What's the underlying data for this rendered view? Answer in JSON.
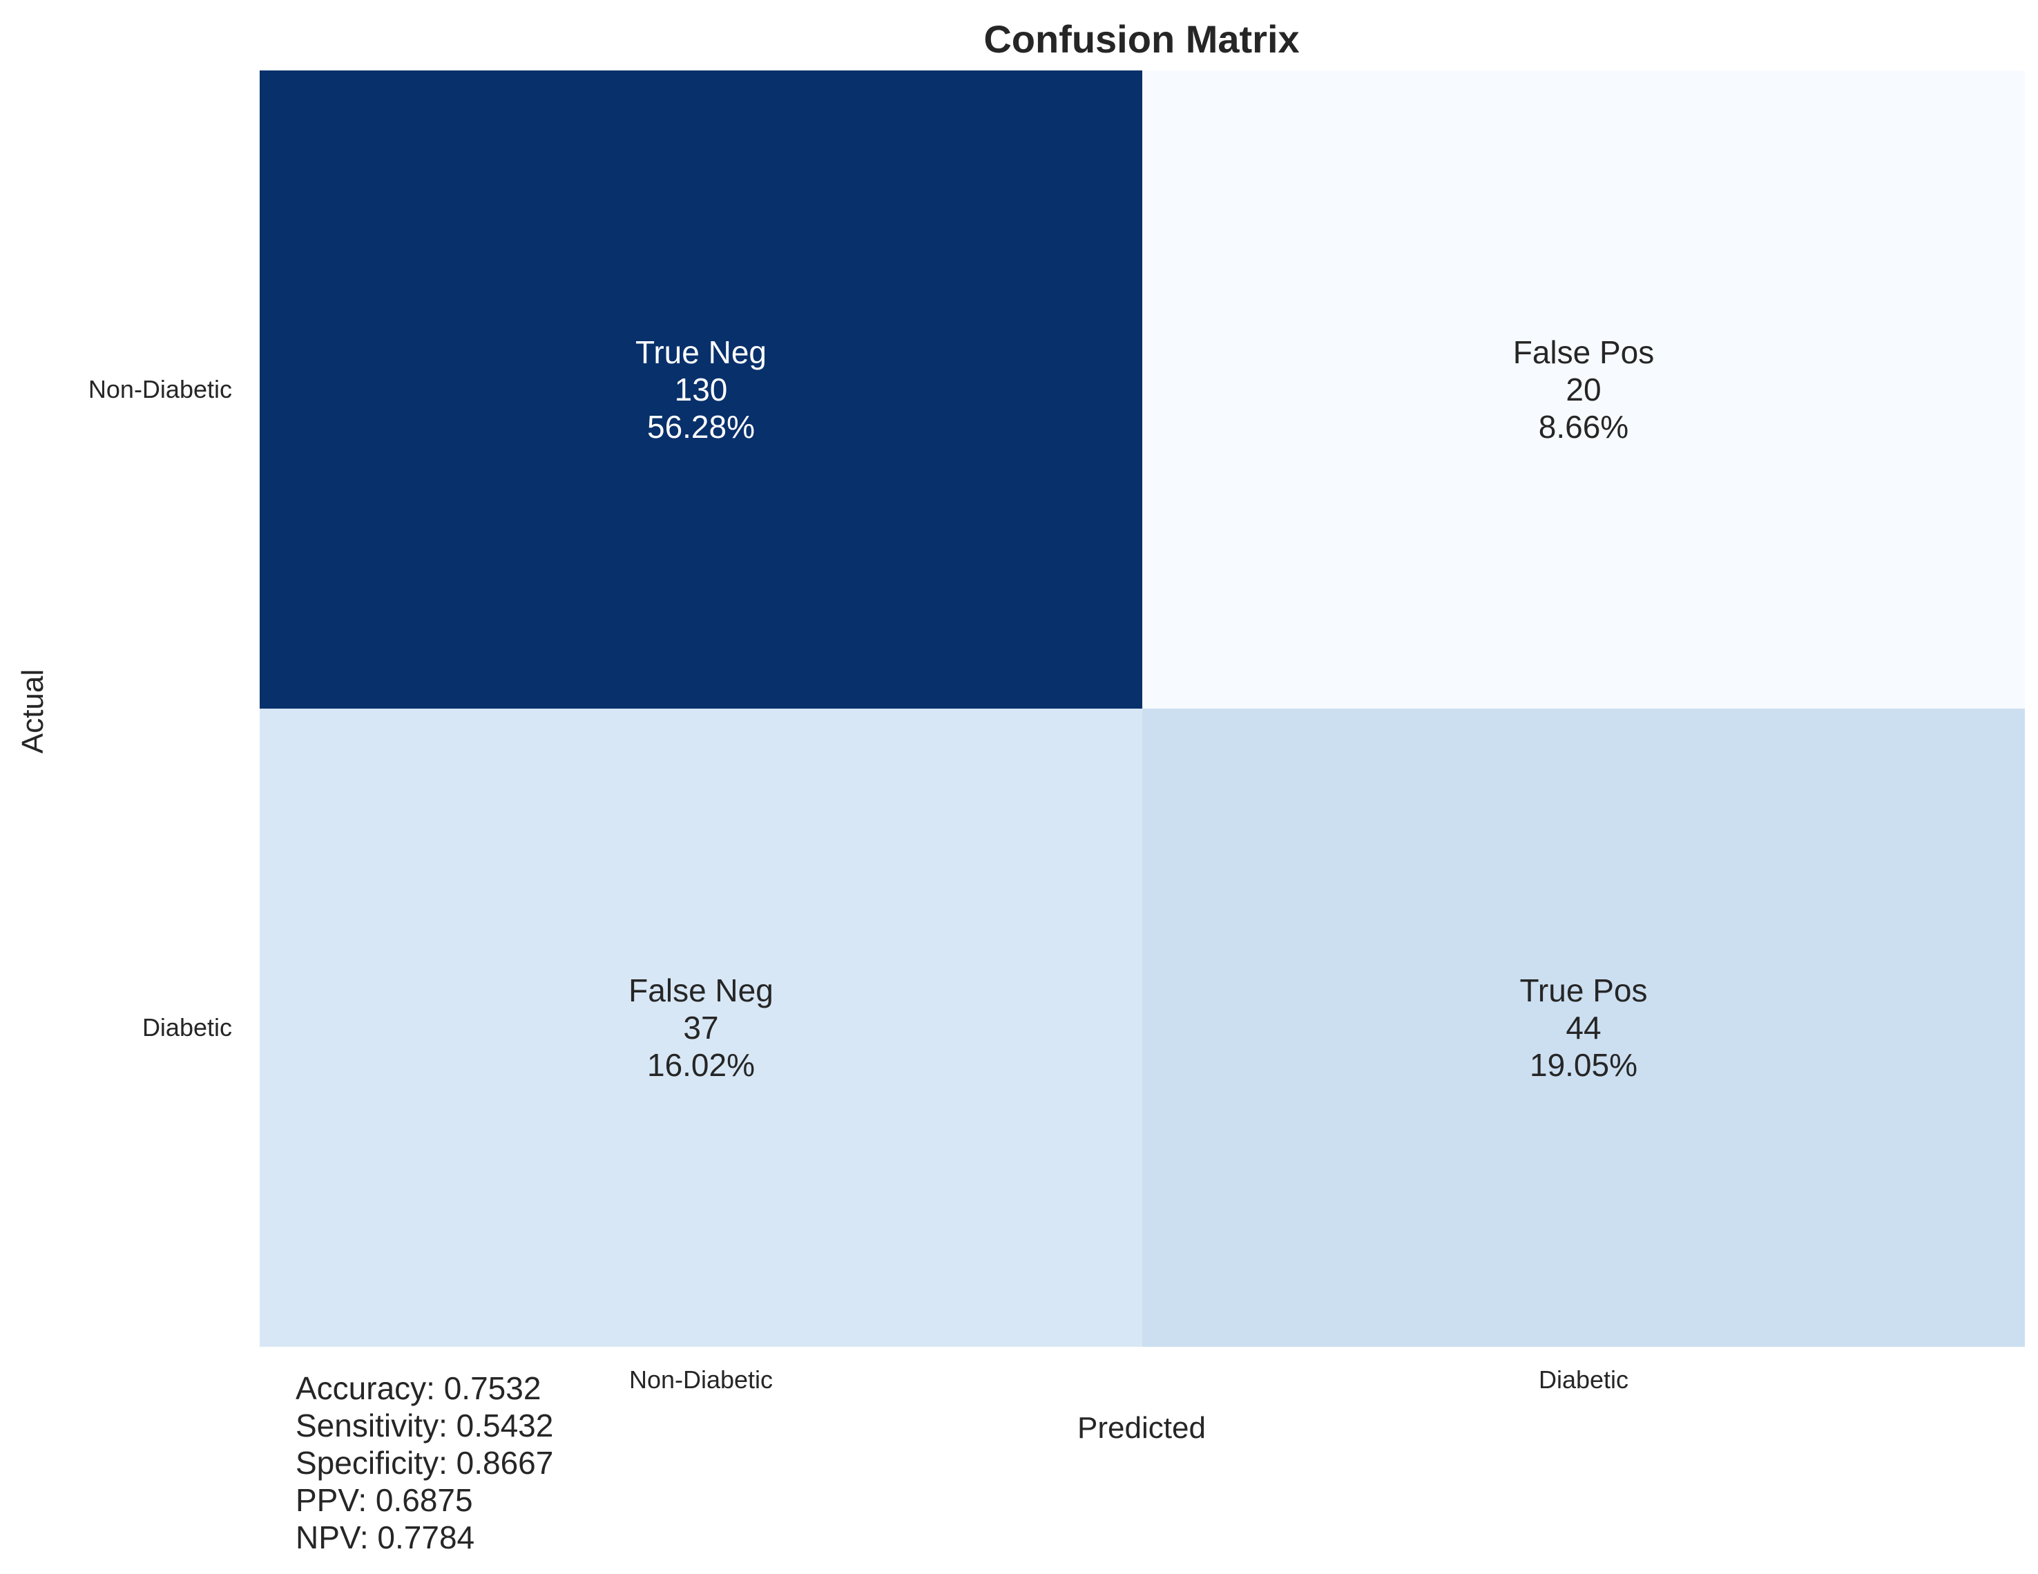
{
  "chart_data": {
    "type": "heatmap",
    "title": "Confusion Matrix",
    "xlabel": "Predicted",
    "ylabel": "Actual",
    "x_categories": [
      "Non-Diabetic",
      "Diabetic"
    ],
    "y_categories": [
      "Non-Diabetic",
      "Diabetic"
    ],
    "matrix": [
      [
        130,
        20
      ],
      [
        37,
        44
      ]
    ],
    "cells": [
      [
        {
          "label": "True Neg",
          "count": "130",
          "percent": "56.28%"
        },
        {
          "label": "False Pos",
          "count": "20",
          "percent": "8.66%"
        }
      ],
      [
        {
          "label": "False Neg",
          "count": "37",
          "percent": "16.02%"
        },
        {
          "label": "True Pos",
          "count": "44",
          "percent": "19.05%"
        }
      ]
    ],
    "colormap": "Blues",
    "colors": {
      "max": "#08306b",
      "min": "#f7fbff",
      "text_dark": "#262626",
      "text_light": "#ffffff"
    },
    "colorbar": false,
    "metrics": [
      "Accuracy: 0.7532",
      "Sensitivity: 0.5432",
      "Specificity: 0.8667",
      "PPV: 0.6875",
      "NPV: 0.7784"
    ]
  }
}
